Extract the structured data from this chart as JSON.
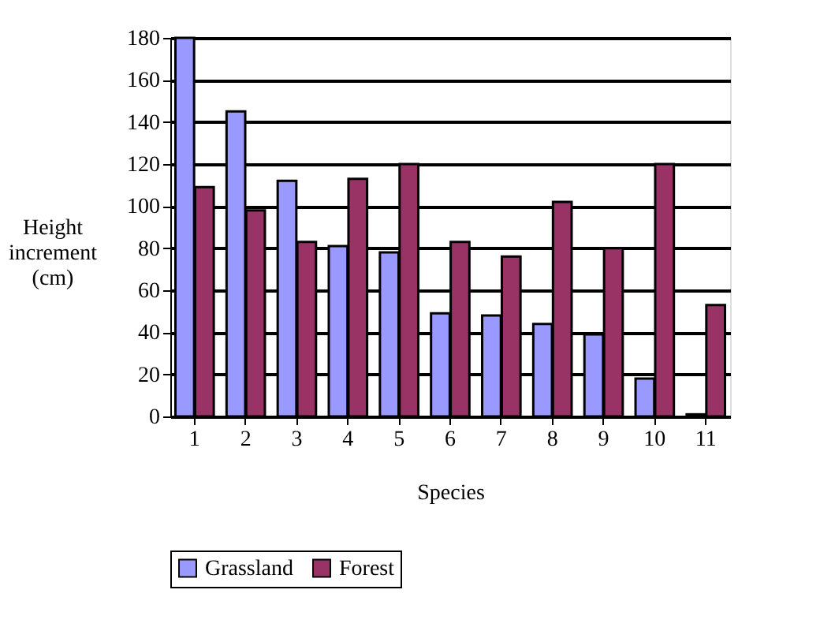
{
  "chart_data": {
    "type": "bar",
    "xlabel": "Species",
    "ylabel": "Height increment (cm)",
    "categories": [
      "1",
      "2",
      "3",
      "4",
      "5",
      "6",
      "7",
      "8",
      "9",
      "10",
      "11"
    ],
    "series": [
      {
        "name": "Grassland",
        "color": "#9999ff",
        "values": [
          180,
          145,
          112,
          81,
          78,
          49,
          48,
          44,
          39,
          18,
          1
        ]
      },
      {
        "name": "Forest",
        "color": "#993366",
        "values": [
          109,
          98,
          83,
          113,
          120,
          83,
          76,
          102,
          80,
          120,
          53
        ]
      }
    ],
    "ylim": [
      0,
      180
    ],
    "yticks": [
      0,
      20,
      40,
      60,
      80,
      100,
      120,
      140,
      160,
      180
    ],
    "grid": "y",
    "legend": "bottom"
  }
}
